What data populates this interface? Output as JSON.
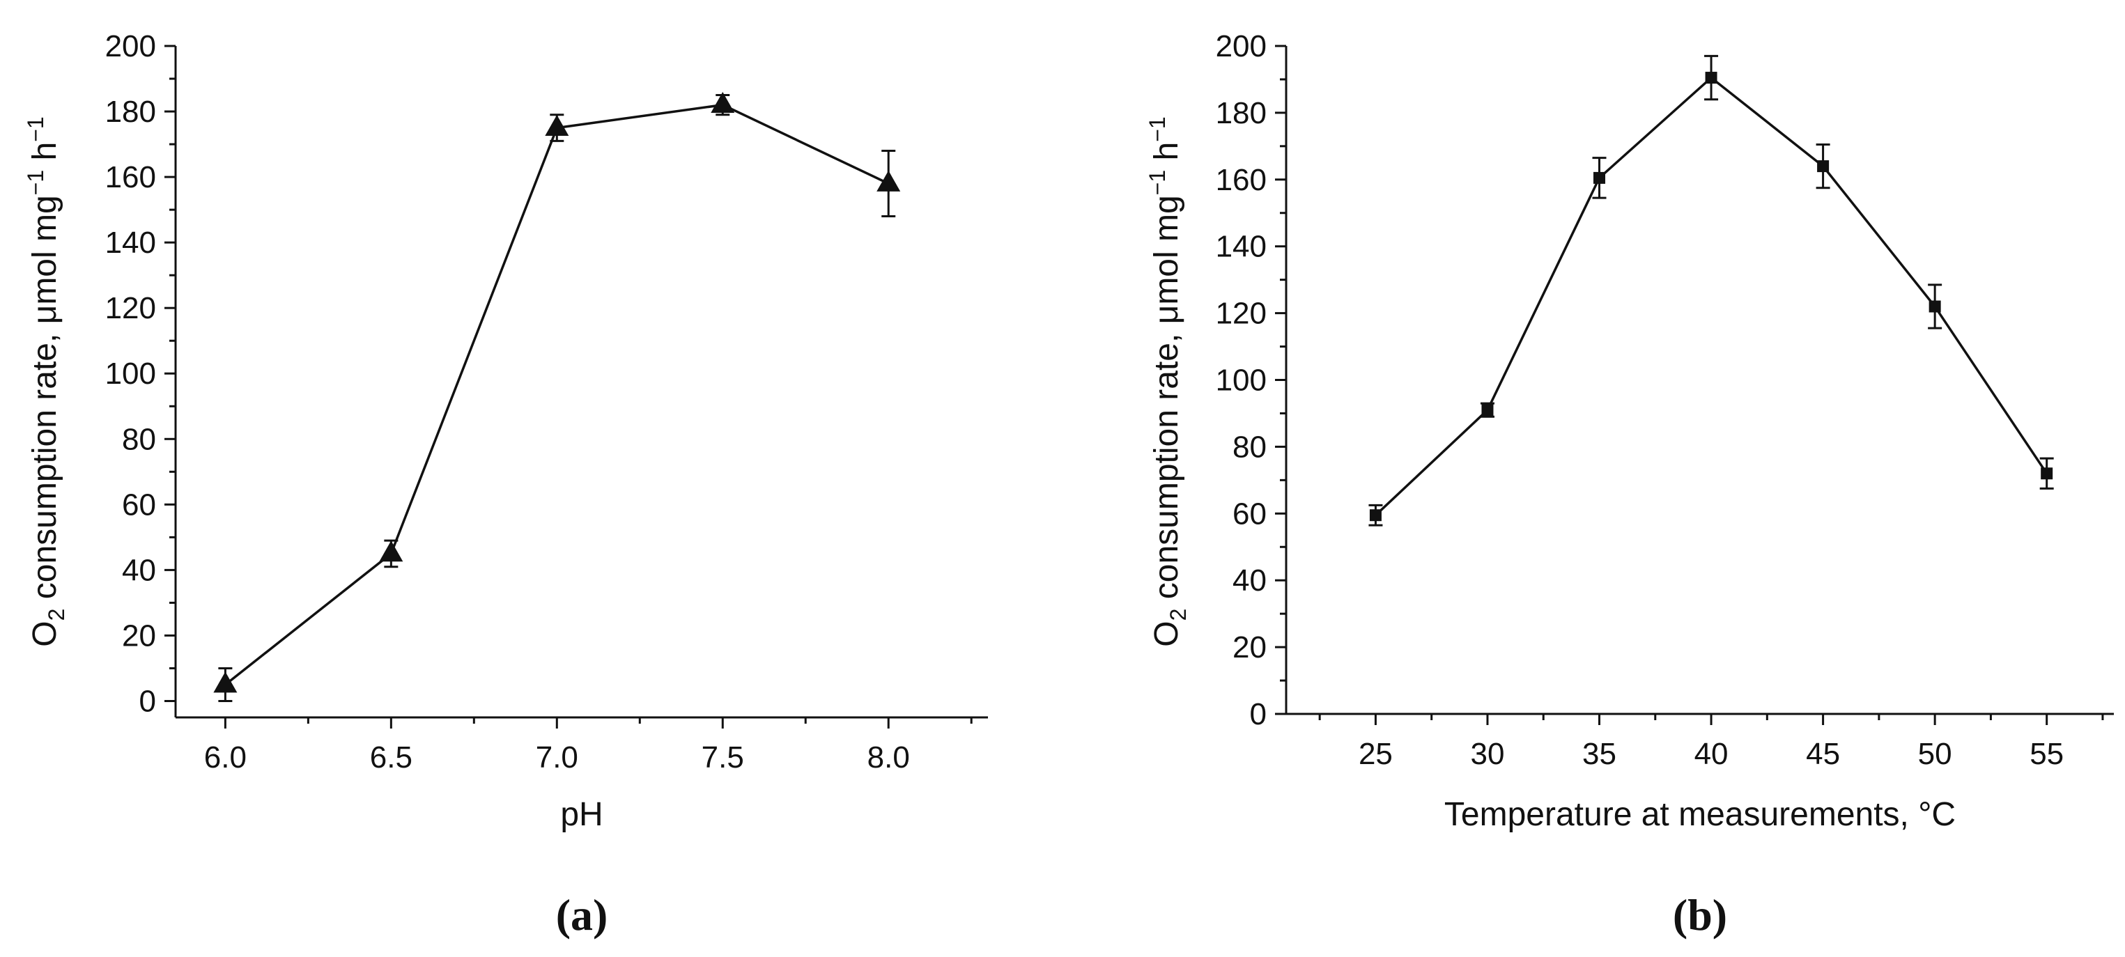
{
  "chart_data": [
    {
      "panel_label": "(a)",
      "type": "line",
      "marker": "triangle",
      "title": "",
      "xlabel": "pH",
      "ylabel": {
        "prefix": "O",
        "sub": "2",
        "main": " consumption rate, μmol mg",
        "sup1": "−1",
        "mid": " h",
        "sup2": "−1"
      },
      "xlim": [
        5.85,
        8.3
      ],
      "ylim": [
        -5,
        200
      ],
      "xticks": [
        6.0,
        6.5,
        7.0,
        7.5,
        8.0
      ],
      "xtick_labels": [
        "6.0",
        "6.5",
        "7.0",
        "7.5",
        "8.0"
      ],
      "yticks": [
        0,
        20,
        40,
        60,
        80,
        100,
        120,
        140,
        160,
        180,
        200
      ],
      "ytick_labels": [
        "0",
        "20",
        "40",
        "60",
        "80",
        "100",
        "120",
        "140",
        "160",
        "180",
        "200"
      ],
      "series": [
        {
          "name": "O2 consumption rate vs pH",
          "x": [
            6.0,
            6.5,
            7.0,
            7.5,
            8.0
          ],
          "y": [
            5,
            45,
            175,
            182,
            158
          ],
          "err": [
            5,
            4,
            4,
            3,
            10
          ]
        }
      ]
    },
    {
      "panel_label": "(b)",
      "type": "line",
      "marker": "square",
      "title": "",
      "xlabel": "Temperature at measurements, °C",
      "ylabel": {
        "prefix": "O",
        "sub": "2",
        "main": " consumption rate, μmol mg",
        "sup1": "−1",
        "mid": " h",
        "sup2": "−1"
      },
      "xlim": [
        21,
        58
      ],
      "ylim": [
        0,
        200
      ],
      "xticks": [
        25,
        30,
        35,
        40,
        45,
        50,
        55
      ],
      "xtick_labels": [
        "25",
        "30",
        "35",
        "40",
        "45",
        "50",
        "55"
      ],
      "yticks": [
        0,
        20,
        40,
        60,
        80,
        100,
        120,
        140,
        160,
        180,
        200
      ],
      "ytick_labels": [
        "0",
        "20",
        "40",
        "60",
        "80",
        "100",
        "120",
        "140",
        "160",
        "180",
        "200"
      ],
      "series": [
        {
          "name": "O2 consumption rate vs temperature",
          "x": [
            25,
            30,
            35,
            40,
            45,
            50,
            55
          ],
          "y": [
            59.5,
            91,
            160.5,
            190.5,
            164,
            122,
            72
          ],
          "err": [
            3,
            2,
            6,
            6.5,
            6.5,
            6.5,
            4.5
          ]
        }
      ]
    }
  ]
}
